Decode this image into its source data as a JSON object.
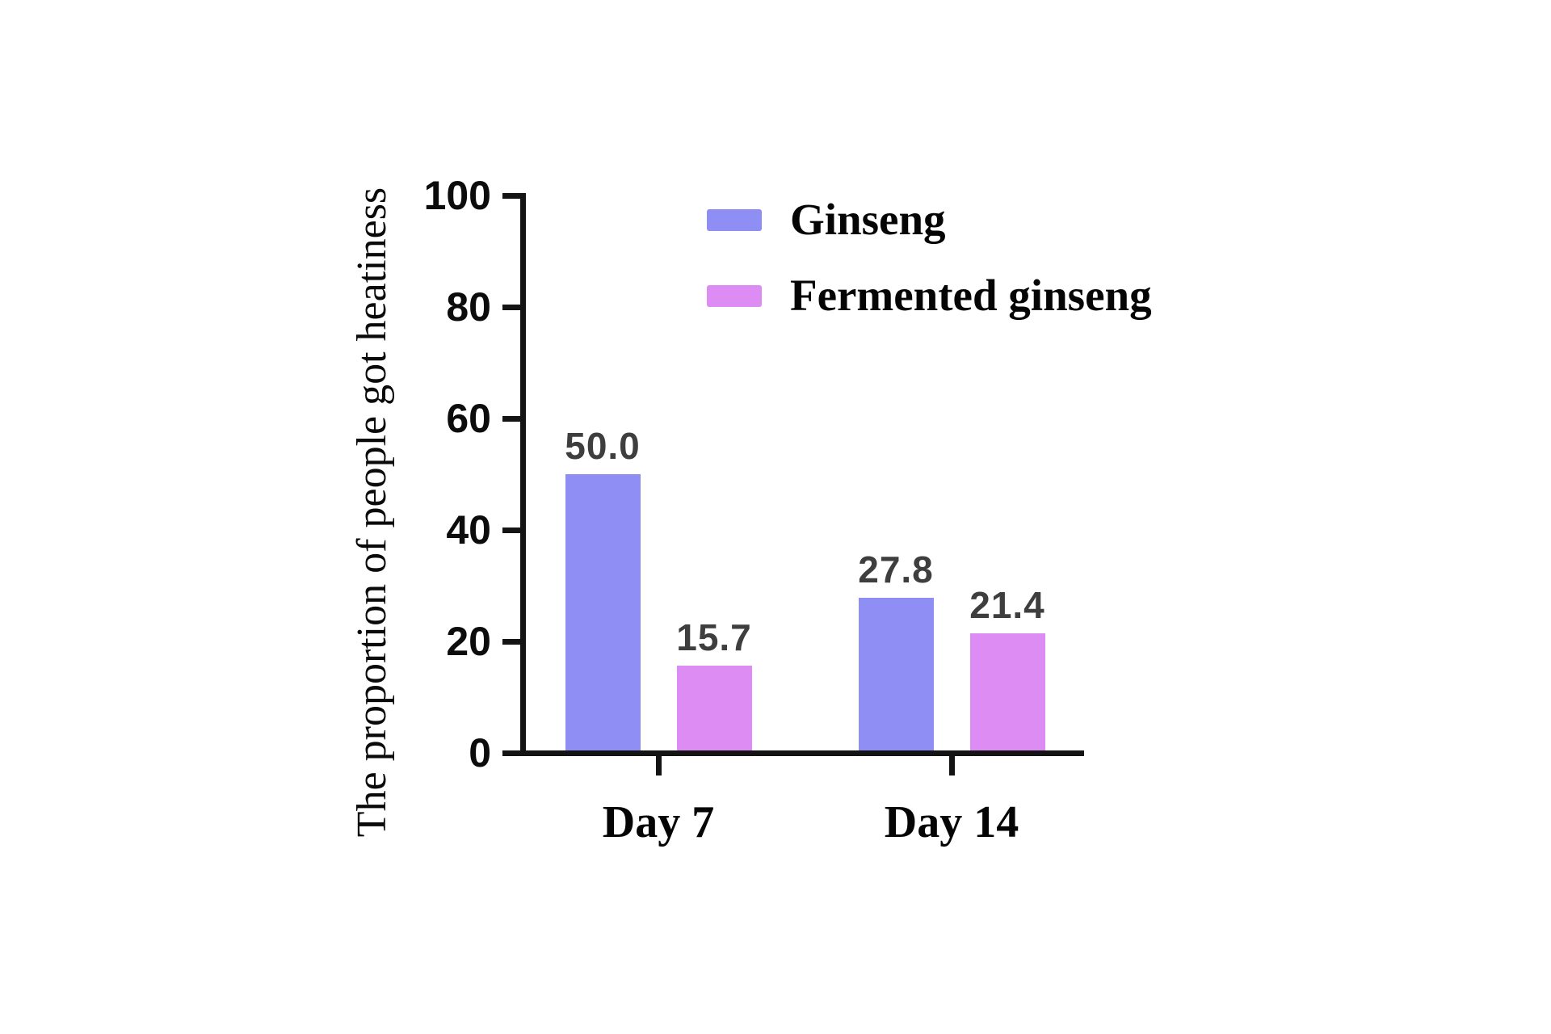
{
  "chart_data": {
    "type": "bar",
    "title": "",
    "ylabel": "The proportion of people got heatiness",
    "xlabel": "",
    "categories": [
      "Day 7",
      "Day 14"
    ],
    "series": [
      {
        "name": "Ginseng",
        "color": "#8e8ef5",
        "values": [
          50.0,
          27.8
        ],
        "value_labels": [
          "50.0",
          "27.8"
        ]
      },
      {
        "name": "Fermented ginseng",
        "color": "#dc8cf2",
        "values": [
          15.7,
          21.4
        ],
        "value_labels": [
          "15.7",
          "21.4"
        ]
      }
    ],
    "ylim": [
      0,
      100
    ],
    "yticks": [
      0,
      20,
      40,
      60,
      80,
      100
    ],
    "grid": false,
    "legend_position": "top-right",
    "colors": {
      "axis": "#141414",
      "value_label": "#3e3e3e",
      "text": "#050505",
      "background": "#ffffff"
    }
  }
}
